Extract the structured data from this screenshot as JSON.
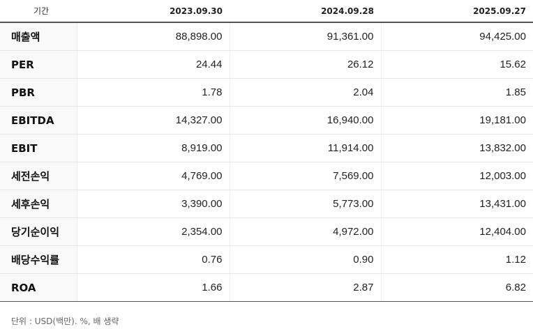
{
  "table": {
    "header": {
      "label": "기간",
      "periods": [
        "2023.09.30",
        "2024.09.28",
        "2025.09.27"
      ]
    },
    "rows": [
      {
        "label": "매출액",
        "values": [
          "88,898.00",
          "91,361.00",
          "94,425.00"
        ]
      },
      {
        "label": "PER",
        "values": [
          "24.44",
          "26.12",
          "15.62"
        ]
      },
      {
        "label": "PBR",
        "values": [
          "1.78",
          "2.04",
          "1.85"
        ]
      },
      {
        "label": "EBITDA",
        "values": [
          "14,327.00",
          "16,940.00",
          "19,181.00"
        ]
      },
      {
        "label": "EBIT",
        "values": [
          "8,919.00",
          "11,914.00",
          "13,832.00"
        ]
      },
      {
        "label": "세전손익",
        "values": [
          "4,769.00",
          "7,569.00",
          "12,003.00"
        ]
      },
      {
        "label": "세후손익",
        "values": [
          "3,390.00",
          "5,773.00",
          "13,431.00"
        ]
      },
      {
        "label": "당기순이익",
        "values": [
          "2,354.00",
          "4,972.00",
          "12,404.00"
        ]
      },
      {
        "label": "배당수익률",
        "values": [
          "0.76",
          "0.90",
          "1.12"
        ]
      },
      {
        "label": "ROA",
        "values": [
          "1.66",
          "2.87",
          "6.82"
        ]
      }
    ]
  },
  "footnote": "단위 : USD(백만). %, 배 생략"
}
